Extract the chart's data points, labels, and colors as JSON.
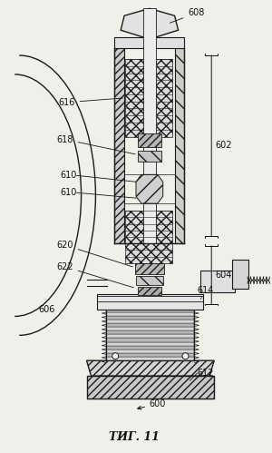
{
  "title": "ΤИГ. 11",
  "bg_color": "#f0f0ea",
  "line_color": "#1a1a1a",
  "figsize": [
    3.0,
    4.99
  ],
  "dpi": 100
}
